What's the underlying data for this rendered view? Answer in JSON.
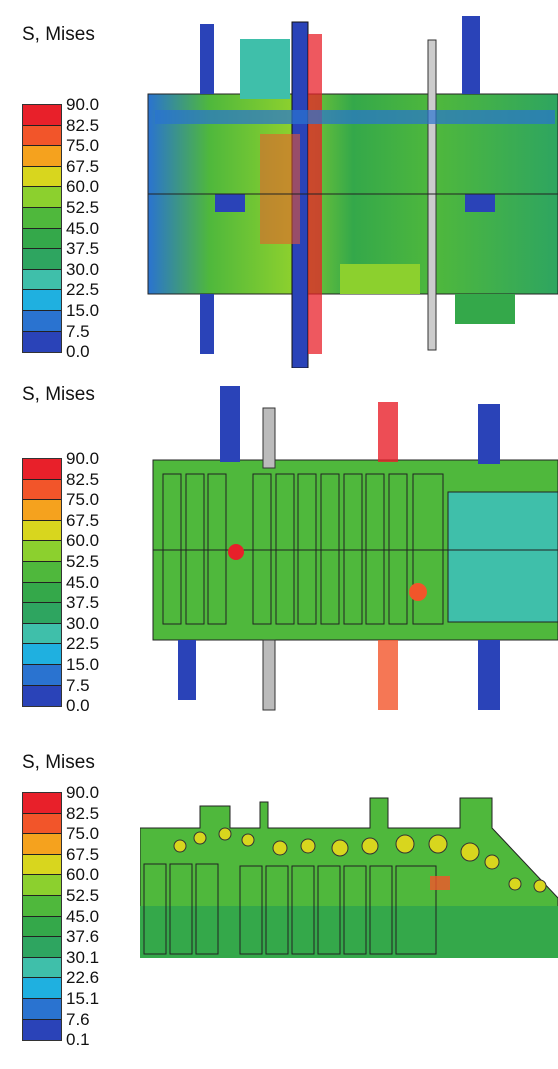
{
  "panels": [
    {
      "title": "S, Mises",
      "legend": [
        "90.0",
        "82.5",
        "75.0",
        "67.5",
        "60.0",
        "52.5",
        "45.0",
        "37.5",
        "30.0",
        "22.5",
        "15.0",
        "7.5",
        "0.0"
      ]
    },
    {
      "title": "S, Mises",
      "legend": [
        "90.0",
        "82.5",
        "75.0",
        "67.5",
        "60.0",
        "52.5",
        "45.0",
        "37.5",
        "30.0",
        "22.5",
        "15.0",
        "7.5",
        "0.0"
      ]
    },
    {
      "title": "S, Mises",
      "legend": [
        "90.0",
        "82.5",
        "75.0",
        "67.5",
        "60.0",
        "52.5",
        "45.0",
        "37.6",
        "30.1",
        "22.6",
        "15.1",
        "7.6",
        "0.1"
      ]
    }
  ],
  "colors": {
    "scale": [
      "#e8202a",
      "#f2552a",
      "#f5a21e",
      "#d8d61e",
      "#8cd02e",
      "#4fb83c",
      "#34a84a",
      "#2ea560",
      "#3fbfaa",
      "#1fb0e0",
      "#2a73d0",
      "#2a43b8"
    ],
    "background": "#ffffff"
  }
}
